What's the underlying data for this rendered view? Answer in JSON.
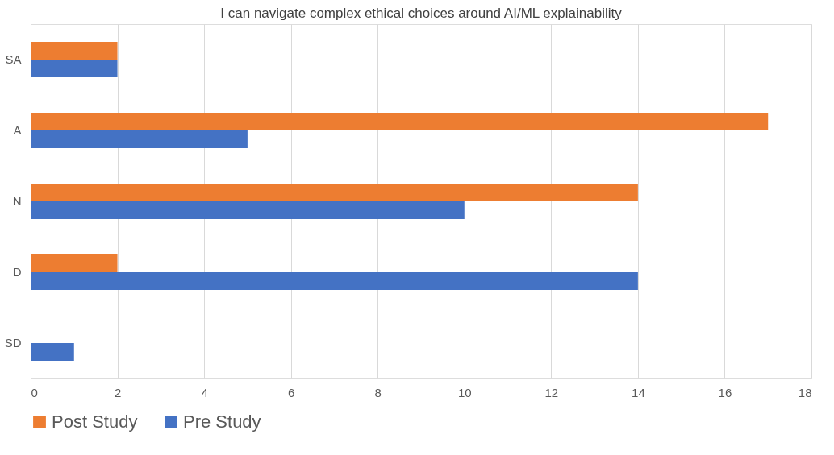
{
  "chart_data": {
    "type": "bar",
    "orientation": "horizontal",
    "title": "I can navigate complex ethical choices around AI/ML explainability",
    "categories": [
      "SA",
      "A",
      "N",
      "D",
      "SD"
    ],
    "series": [
      {
        "name": "Post Study",
        "color": "#ed7d31",
        "values": [
          2,
          17,
          14,
          2,
          null
        ]
      },
      {
        "name": "Pre Study",
        "color": "#4472c4",
        "values": [
          2,
          5,
          10,
          14,
          1
        ]
      }
    ],
    "xlim": [
      0,
      18
    ],
    "xticks": [
      0,
      2,
      4,
      6,
      8,
      10,
      12,
      14,
      16,
      18
    ],
    "grid": "x",
    "legend": "bottom"
  }
}
